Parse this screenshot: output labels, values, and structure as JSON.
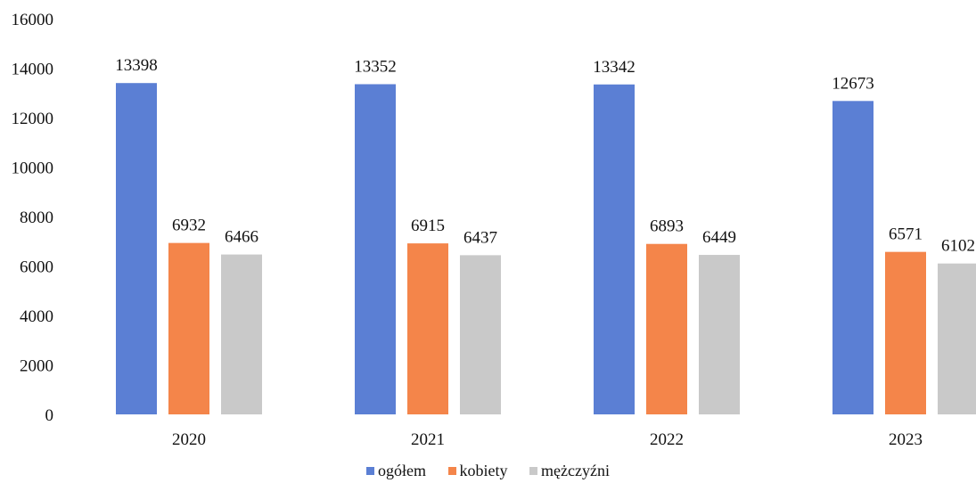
{
  "chart_data": {
    "type": "bar",
    "categories": [
      "2020",
      "2021",
      "2022",
      "2023"
    ],
    "series": [
      {
        "name": "ogółem",
        "values": [
          13398,
          13352,
          13342,
          12673
        ],
        "color": "#5b7fd4"
      },
      {
        "name": "kobiety",
        "values": [
          6932,
          6915,
          6893,
          6571
        ],
        "color": "#f4854a"
      },
      {
        "name": "mężczyźni",
        "values": [
          6466,
          6437,
          6449,
          6102
        ],
        "color": "#c9c9c9"
      }
    ],
    "y_ticks": [
      "0",
      "2000",
      "4000",
      "6000",
      "8000",
      "10000",
      "12000",
      "14000",
      "16000"
    ],
    "ylim": [
      0,
      16000
    ],
    "grid": false,
    "legend_position": "bottom",
    "data_labels": true
  }
}
